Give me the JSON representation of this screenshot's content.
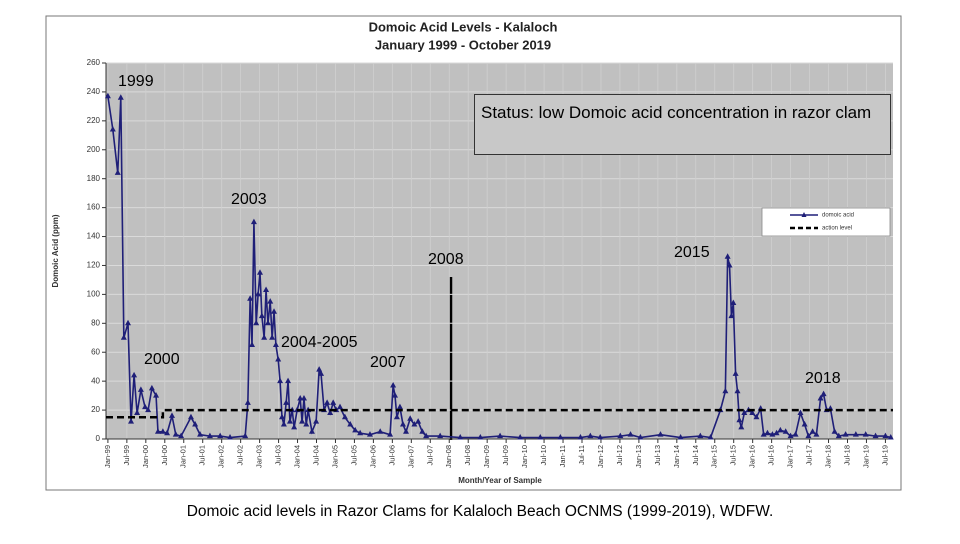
{
  "chart_data": {
    "type": "line",
    "title": "Domoic Acid Levels - Kalaloch",
    "subtitle": "January 1999 - October 2019",
    "y_label": "Domoic Acid (ppm)",
    "x_label": "Month/Year of Sample",
    "status": "Status: low Domoic acid concentration in razor clam",
    "annotations": [
      "1999",
      "2000",
      "2003",
      "2004-2005",
      "2007",
      "2008",
      "2015",
      "2018"
    ],
    "caption": "Domoic acid levels in Razor Clams for Kalaloch Beach OCNMS (1999-2019), WDFW.",
    "grid": true,
    "legend": "upper right",
    "ylim": [
      0,
      260
    ],
    "yticks": [
      0,
      20,
      40,
      60,
      80,
      100,
      120,
      140,
      160,
      180,
      200,
      220,
      240,
      260
    ],
    "xlim": [
      1998.95,
      2019.7
    ],
    "xticks": [
      {
        "value": 1999,
        "label": "Jan-99"
      },
      {
        "value": 1999.5,
        "label": "Jul-99"
      },
      {
        "value": 2000,
        "label": "Jan-00"
      },
      {
        "value": 2000.5,
        "label": "Jul-00"
      },
      {
        "value": 2001,
        "label": "Jan-01"
      },
      {
        "value": 2001.5,
        "label": "Jul-01"
      },
      {
        "value": 2002,
        "label": "Jan-02"
      },
      {
        "value": 2002.5,
        "label": "Jul-02"
      },
      {
        "value": 2003,
        "label": "Jan-03"
      },
      {
        "value": 2003.5,
        "label": "Jul-03"
      },
      {
        "value": 2004,
        "label": "Jan-04"
      },
      {
        "value": 2004.5,
        "label": "Jul-04"
      },
      {
        "value": 2005,
        "label": "Jan-05"
      },
      {
        "value": 2005.5,
        "label": "Jul-05"
      },
      {
        "value": 2006,
        "label": "Jan-06"
      },
      {
        "value": 2006.5,
        "label": "Jul-06"
      },
      {
        "value": 2007,
        "label": "Jan-07"
      },
      {
        "value": 2007.5,
        "label": "Jul-07"
      },
      {
        "value": 2008,
        "label": "Jan-08"
      },
      {
        "value": 2008.5,
        "label": "Jul-08"
      },
      {
        "value": 2009,
        "label": "Jan-09"
      },
      {
        "value": 2009.5,
        "label": "Jul-09"
      },
      {
        "value": 2010,
        "label": "Jan-10"
      },
      {
        "value": 2010.5,
        "label": "Jul-10"
      },
      {
        "value": 2011,
        "label": "Jan-11"
      },
      {
        "value": 2011.5,
        "label": "Jul-11"
      },
      {
        "value": 2012,
        "label": "Jan-12"
      },
      {
        "value": 2012.5,
        "label": "Jul-12"
      },
      {
        "value": 2013,
        "label": "Jan-13"
      },
      {
        "value": 2013.5,
        "label": "Jul-13"
      },
      {
        "value": 2014,
        "label": "Jan-14"
      },
      {
        "value": 2014.5,
        "label": "Jul-14"
      },
      {
        "value": 2015,
        "label": "Jan-15"
      },
      {
        "value": 2015.5,
        "label": "Jul-15"
      },
      {
        "value": 2016,
        "label": "Jan-16"
      },
      {
        "value": 2016.5,
        "label": "Jul-16"
      },
      {
        "value": 2017,
        "label": "Jan-17"
      },
      {
        "value": 2017.5,
        "label": "Jul-17"
      },
      {
        "value": 2018,
        "label": "Jan-18"
      },
      {
        "value": 2018.5,
        "label": "Jul-18"
      },
      {
        "value": 2019,
        "label": "Jan-19"
      },
      {
        "value": 2019.5,
        "label": "Jul-19"
      }
    ],
    "series": [
      {
        "name": "domoic acid",
        "color": "#1f1f78",
        "marker": "triangle",
        "dashed": false,
        "x": [
          1999.0,
          1999.13,
          1999.26,
          1999.34,
          1999.42,
          1999.53,
          1999.61,
          1999.69,
          1999.77,
          1999.87,
          1999.98,
          2000.06,
          2000.16,
          2000.27,
          2000.32,
          2000.45,
          2000.56,
          2000.69,
          2000.79,
          2000.93,
          2001.19,
          2001.3,
          2001.43,
          2001.69,
          2001.96,
          2002.22,
          2002.62,
          2002.69,
          2002.75,
          2002.8,
          2002.85,
          2002.91,
          2002.96,
          2003.01,
          2003.06,
          2003.12,
          2003.17,
          2003.22,
          2003.28,
          2003.33,
          2003.38,
          2003.43,
          2003.49,
          2003.54,
          2003.59,
          2003.64,
          2003.7,
          2003.75,
          2003.8,
          2003.86,
          2003.91,
          2003.99,
          2004.07,
          2004.12,
          2004.17,
          2004.23,
          2004.28,
          2004.38,
          2004.49,
          2004.57,
          2004.62,
          2004.7,
          2004.78,
          2004.86,
          2004.94,
          2005.02,
          2005.12,
          2005.25,
          2005.39,
          2005.52,
          2005.65,
          2005.91,
          2006.18,
          2006.44,
          2006.52,
          2006.57,
          2006.62,
          2006.7,
          2006.78,
          2006.86,
          2006.97,
          2007.08,
          2007.18,
          2007.29,
          2007.39,
          2007.76,
          2008.29,
          2008.82,
          2009.34,
          2009.87,
          2010.4,
          2010.93,
          2011.46,
          2011.72,
          2011.98,
          2012.51,
          2012.78,
          2013.04,
          2013.57,
          2014.1,
          2014.62,
          2014.89,
          2015.15,
          2015.28,
          2015.34,
          2015.39,
          2015.44,
          2015.49,
          2015.55,
          2015.6,
          2015.65,
          2015.7,
          2015.78,
          2015.89,
          2015.99,
          2016.1,
          2016.21,
          2016.29,
          2016.39,
          2016.52,
          2016.63,
          2016.73,
          2016.87,
          2017.0,
          2017.13,
          2017.26,
          2017.37,
          2017.47,
          2017.58,
          2017.68,
          2017.79,
          2017.87,
          2017.95,
          2018.05,
          2018.16,
          2018.27,
          2018.45,
          2018.72,
          2018.98,
          2019.24,
          2019.5,
          2019.64
        ],
        "values": [
          237,
          214,
          184,
          236,
          70,
          80,
          12,
          44,
          18,
          34,
          22,
          20,
          35,
          30,
          5,
          5,
          4,
          16,
          3,
          2,
          15,
          10,
          3,
          2,
          2,
          1,
          2,
          25,
          97,
          65,
          150,
          80,
          100,
          115,
          85,
          70,
          103,
          80,
          95,
          70,
          88,
          65,
          55,
          40,
          15,
          10,
          25,
          40,
          12,
          20,
          8,
          20,
          28,
          12,
          28,
          10,
          20,
          5,
          12,
          48,
          45,
          20,
          25,
          18,
          25,
          20,
          22,
          15,
          10,
          6,
          4,
          3,
          5,
          3,
          37,
          30,
          15,
          22,
          10,
          5,
          14,
          10,
          12,
          5,
          2,
          2,
          1,
          1,
          2,
          1,
          1,
          1,
          1,
          2,
          1,
          2,
          3,
          1,
          3,
          1,
          2,
          1,
          20,
          33,
          126,
          120,
          85,
          94,
          45,
          33,
          13,
          8,
          18,
          20,
          18,
          15,
          21,
          3,
          4,
          3,
          4,
          6,
          5,
          2,
          3,
          18,
          10,
          2,
          5,
          3,
          28,
          31,
          20,
          21,
          5,
          2,
          3,
          3,
          3,
          2,
          2,
          1
        ]
      },
      {
        "name": "action level",
        "color": "#000000",
        "marker": "none",
        "dashed": true,
        "x": [
          1998.95,
          2000.45,
          2000.45,
          2019.7
        ],
        "values": [
          15,
          15,
          20,
          20
        ]
      }
    ]
  }
}
